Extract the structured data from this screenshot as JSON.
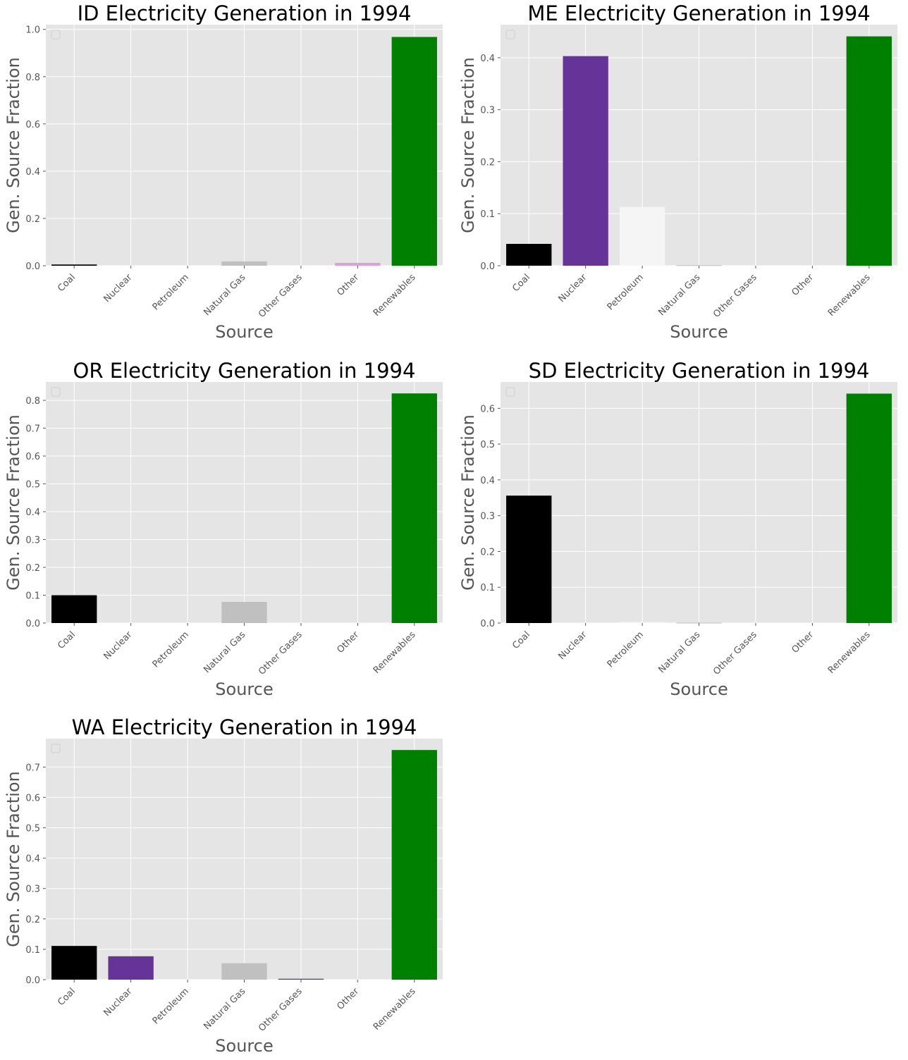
{
  "style": {
    "panel_background": "#e5e5e5",
    "grid_color": "#ffffff",
    "tick_color": "#555555",
    "title_color": "#000000",
    "label_color": "#555555"
  },
  "chart_data": [
    {
      "type": "bar",
      "title": "ID Electricity Generation in 1994",
      "xlabel": "Source",
      "ylabel": "Gen. Source Fraction",
      "categories": [
        "Coal",
        "Nuclear",
        "Petroleum",
        "Natural Gas",
        "Other Gases",
        "Other",
        "Renewables"
      ],
      "values": [
        0.005,
        0.0,
        0.0,
        0.018,
        0.0,
        0.012,
        0.968
      ],
      "colors": [
        "#000000",
        "#663399",
        "#f5f5f5",
        "#c0c0c0",
        "#4a4a7a",
        "#dda0dd",
        "#008000"
      ],
      "ylim": [
        0,
        1.02
      ],
      "yticks": [
        "0.0",
        "0.2",
        "0.4",
        "0.6",
        "0.8",
        "1.0"
      ],
      "grid": true,
      "legend": "top-left (empty)"
    },
    {
      "type": "bar",
      "title": "ME Electricity Generation in 1994",
      "xlabel": "Source",
      "ylabel": "Gen. Source Fraction",
      "categories": [
        "Coal",
        "Nuclear",
        "Petroleum",
        "Natural Gas",
        "Other Gases",
        "Other",
        "Renewables"
      ],
      "values": [
        0.042,
        0.403,
        0.113,
        0.001,
        0.0,
        0.0,
        0.441
      ],
      "colors": [
        "#000000",
        "#663399",
        "#f5f5f5",
        "#c0c0c0",
        "#4a4a7a",
        "#dda0dd",
        "#008000"
      ],
      "ylim": [
        0,
        0.4635
      ],
      "yticks": [
        "0.0",
        "0.1",
        "0.2",
        "0.3",
        "0.4"
      ],
      "grid": true,
      "legend": "top-left (empty)"
    },
    {
      "type": "bar",
      "title": "OR Electricity Generation in 1994",
      "xlabel": "Source",
      "ylabel": "Gen. Source Fraction",
      "categories": [
        "Coal",
        "Nuclear",
        "Petroleum",
        "Natural Gas",
        "Other Gases",
        "Other",
        "Renewables"
      ],
      "values": [
        0.1,
        0.0,
        0.0,
        0.076,
        0.0,
        0.0,
        0.825
      ],
      "colors": [
        "#000000",
        "#663399",
        "#f5f5f5",
        "#c0c0c0",
        "#4a4a7a",
        "#dda0dd",
        "#008000"
      ],
      "ylim": [
        0,
        0.866
      ],
      "yticks": [
        "0.0",
        "0.1",
        "0.2",
        "0.3",
        "0.4",
        "0.5",
        "0.6",
        "0.7",
        "0.8"
      ],
      "grid": true,
      "legend": "top-left (empty)"
    },
    {
      "type": "bar",
      "title": "SD Electricity Generation in 1994",
      "xlabel": "Source",
      "ylabel": "Gen. Source Fraction",
      "categories": [
        "Coal",
        "Nuclear",
        "Petroleum",
        "Natural Gas",
        "Other Gases",
        "Other",
        "Renewables"
      ],
      "values": [
        0.356,
        0.0,
        0.003,
        0.001,
        0.0,
        0.0,
        0.641
      ],
      "colors": [
        "#000000",
        "#663399",
        "#f5f5f5",
        "#c0c0c0",
        "#4a4a7a",
        "#dda0dd",
        "#008000"
      ],
      "ylim": [
        0,
        0.6735
      ],
      "yticks": [
        "0.0",
        "0.1",
        "0.2",
        "0.3",
        "0.4",
        "0.5",
        "0.6"
      ],
      "grid": true,
      "legend": "top-left (empty)"
    },
    {
      "type": "bar",
      "title": "WA Electricity Generation in 1994",
      "xlabel": "Source",
      "ylabel": "Gen. Source Fraction",
      "categories": [
        "Coal",
        "Nuclear",
        "Petroleum",
        "Natural Gas",
        "Other Gases",
        "Other",
        "Renewables"
      ],
      "values": [
        0.111,
        0.077,
        0.0,
        0.054,
        0.003,
        0.0,
        0.756
      ],
      "colors": [
        "#000000",
        "#663399",
        "#f5f5f5",
        "#c0c0c0",
        "#4a4a7a",
        "#dda0dd",
        "#008000"
      ],
      "ylim": [
        0,
        0.7935
      ],
      "yticks": [
        "0.0",
        "0.1",
        "0.2",
        "0.3",
        "0.4",
        "0.5",
        "0.6",
        "0.7"
      ],
      "grid": true,
      "legend": "top-left (empty)"
    }
  ]
}
